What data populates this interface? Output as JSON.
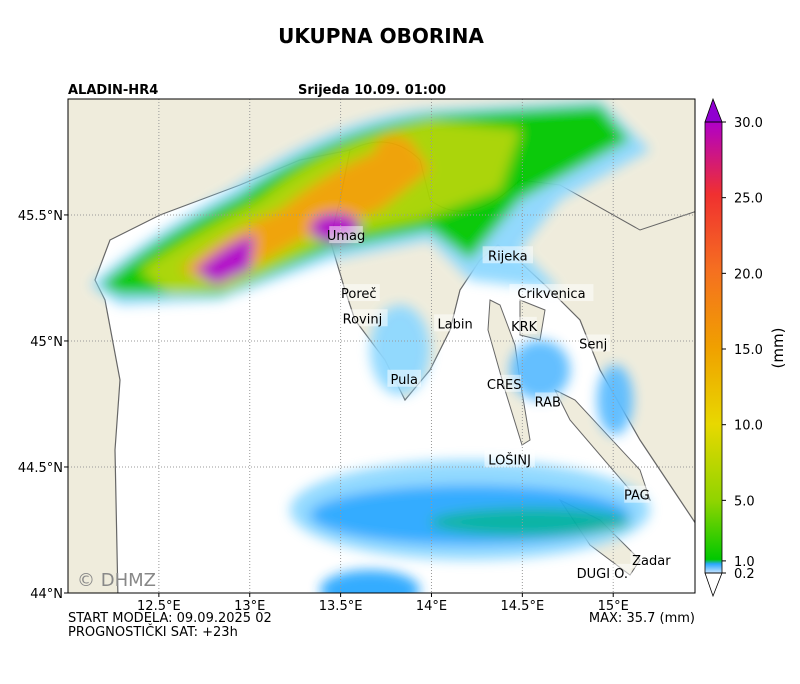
{
  "header": {
    "title": "UKUPNA OBORINA",
    "model": "ALADIN-HR4",
    "valid_time": "Srijeda 10.09. 01:00"
  },
  "map": {
    "xlim": [
      12.0,
      15.45
    ],
    "ylim": [
      44.0,
      45.96
    ],
    "xticks": [
      {
        "value": 12.5,
        "label": "12.5°E"
      },
      {
        "value": 13,
        "label": "13°E"
      },
      {
        "value": 13.5,
        "label": "13.5°E"
      },
      {
        "value": 14,
        "label": "14°E"
      },
      {
        "value": 14.5,
        "label": "14.5°E"
      },
      {
        "value": 15,
        "label": "15°E"
      }
    ],
    "yticks": [
      {
        "value": 44,
        "label": "44°N"
      },
      {
        "value": 44.5,
        "label": "44.5°N"
      },
      {
        "value": 45,
        "label": "45°N"
      },
      {
        "value": 45.5,
        "label": "45.5°N"
      }
    ],
    "places": [
      {
        "label": "Umag",
        "lon": 13.53,
        "lat": 45.42
      },
      {
        "label": "Rijeka",
        "lon": 14.42,
        "lat": 45.34
      },
      {
        "label": "Poreč",
        "lon": 13.6,
        "lat": 45.19
      },
      {
        "label": "Rovinj",
        "lon": 13.62,
        "lat": 45.09
      },
      {
        "label": "Labin",
        "lon": 14.13,
        "lat": 45.07
      },
      {
        "label": "Crikvenica",
        "lon": 14.66,
        "lat": 45.19
      },
      {
        "label": "KRK",
        "lon": 14.51,
        "lat": 45.06
      },
      {
        "label": "Senj",
        "lon": 14.89,
        "lat": 44.99
      },
      {
        "label": "Pula",
        "lon": 13.85,
        "lat": 44.85
      },
      {
        "label": "CRES",
        "lon": 14.4,
        "lat": 44.83
      },
      {
        "label": "RAB",
        "lon": 14.64,
        "lat": 44.76
      },
      {
        "label": "LOŠINJ",
        "lon": 14.43,
        "lat": 44.53
      },
      {
        "label": "PAG",
        "lon": 15.13,
        "lat": 44.39
      },
      {
        "label": "Zadar",
        "lon": 15.21,
        "lat": 44.13
      },
      {
        "label": "DUGI O.",
        "lon": 14.94,
        "lat": 44.08
      }
    ],
    "watermark": "© DHMZ"
  },
  "colorbar": {
    "label": "(mm)",
    "ticks": [
      {
        "value": 0.2,
        "label": "0.2"
      },
      {
        "value": 1,
        "label": "1.0"
      },
      {
        "value": 5,
        "label": "5.0"
      },
      {
        "value": 10,
        "label": "10.0"
      },
      {
        "value": 15,
        "label": "15.0"
      },
      {
        "value": 20,
        "label": "20.0"
      },
      {
        "value": 25,
        "label": "25.0"
      },
      {
        "value": 30,
        "label": "30.0"
      }
    ]
  },
  "footer": {
    "start": "START MODELA: 09.09.2025 02",
    "hour": "PROGNOSTIČKI SAT: +23h",
    "max": "MAX: 35.7 (mm)"
  }
}
